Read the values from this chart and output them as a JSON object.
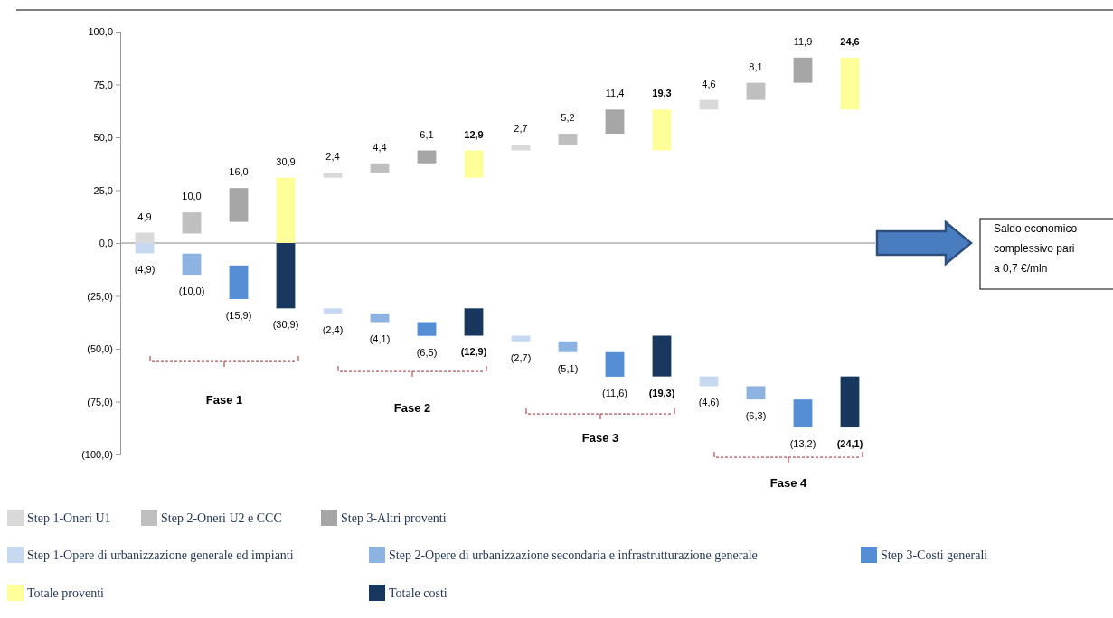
{
  "chart_data": {
    "type": "bar",
    "categories": [
      null,
      null,
      null,
      null,
      null,
      null,
      null,
      null,
      null,
      null,
      null,
      null,
      null,
      null,
      null,
      null
    ],
    "ylim": [
      -100,
      100
    ],
    "yticks": [
      {
        "value": 100,
        "label": "100,0"
      },
      {
        "value": 75,
        "label": "75,0"
      },
      {
        "value": 50,
        "label": "50,0"
      },
      {
        "value": 25,
        "label": "25,0"
      },
      {
        "value": 0,
        "label": "0,0"
      },
      {
        "value": -25,
        "label": "(25,0)"
      },
      {
        "value": -50,
        "label": "(50,0)"
      },
      {
        "value": -75,
        "label": "(75,0)"
      },
      {
        "value": -100,
        "label": "(100,0)"
      }
    ],
    "ref_lines": [
      {
        "axis": "y",
        "value": 0,
        "color": "#888888"
      }
    ],
    "legend": "bottom",
    "series": [
      {
        "name": "Step 1-Oneri U1",
        "color": "#d9d9d9",
        "values": [
          4.9,
          null,
          null,
          null,
          2.4,
          null,
          null,
          null,
          2.7,
          null,
          null,
          null,
          4.6,
          null,
          null,
          null
        ],
        "base": [
          0,
          null,
          null,
          null,
          30.9,
          null,
          null,
          null,
          43.8,
          null,
          null,
          null,
          63.1,
          null,
          null,
          null
        ],
        "value_labels": [
          "4,9",
          null,
          null,
          null,
          "2,4",
          null,
          null,
          null,
          "2,7",
          null,
          null,
          null,
          "4,6",
          null,
          null,
          null
        ]
      },
      {
        "name": "Step 2-Oneri U2 e CCC",
        "color": "#bfbfbf",
        "values": [
          null,
          10.0,
          null,
          null,
          null,
          4.4,
          null,
          null,
          null,
          5.2,
          null,
          null,
          null,
          8.1,
          null,
          null
        ],
        "base": [
          null,
          4.5,
          null,
          null,
          null,
          33.3,
          null,
          null,
          null,
          46.5,
          null,
          null,
          null,
          67.7,
          null,
          null
        ],
        "value_labels": [
          null,
          "10,0",
          null,
          null,
          null,
          "4,4",
          null,
          null,
          null,
          "5,2",
          null,
          null,
          null,
          "8,1",
          null,
          null
        ]
      },
      {
        "name": "Step 3-Altri proventi",
        "color": "#a6a6a6",
        "values": [
          null,
          null,
          16.0,
          null,
          null,
          null,
          6.1,
          null,
          null,
          null,
          11.4,
          null,
          null,
          null,
          11.9,
          null
        ],
        "base": [
          null,
          null,
          10.0,
          null,
          null,
          null,
          37.7,
          null,
          null,
          null,
          51.7,
          null,
          null,
          null,
          75.8,
          null
        ],
        "value_labels": [
          null,
          null,
          "16,0",
          null,
          null,
          null,
          "6,1",
          null,
          null,
          null,
          "11,4",
          null,
          null,
          null,
          "11,9",
          null
        ]
      },
      {
        "name": "Step 1-Opere di urbanizzazione generale ed impianti",
        "color": "#c6d9f1",
        "values": [
          -4.9,
          null,
          null,
          null,
          -2.4,
          null,
          null,
          null,
          -2.7,
          null,
          null,
          null,
          -4.6,
          null,
          null,
          null
        ],
        "base": [
          0,
          null,
          null,
          null,
          -30.9,
          null,
          null,
          null,
          -43.8,
          null,
          null,
          null,
          -63.1,
          null,
          null,
          null
        ],
        "value_labels": [
          "(4,9)",
          null,
          null,
          null,
          "(2,4)",
          null,
          null,
          null,
          "(2,7)",
          null,
          null,
          null,
          "(4,6)",
          null,
          null,
          null
        ]
      },
      {
        "name": "Step 2-Opere di urbanizzazione secondaria e infrastrutturazione generale",
        "color": "#8db3e2",
        "values": [
          null,
          -10.0,
          null,
          null,
          null,
          -4.1,
          null,
          null,
          null,
          -5.1,
          null,
          null,
          null,
          -6.3,
          null,
          null
        ],
        "base": [
          null,
          -5.0,
          null,
          null,
          null,
          -33.3,
          null,
          null,
          null,
          -46.5,
          null,
          null,
          null,
          -67.7,
          null,
          null
        ],
        "value_labels": [
          null,
          "(10,0)",
          null,
          null,
          null,
          "(4,1)",
          null,
          null,
          null,
          "(5,1)",
          null,
          null,
          null,
          "(6,3)",
          null,
          null
        ]
      },
      {
        "name": "Step 3-Costi generali",
        "color": "#558ed5",
        "values": [
          null,
          null,
          -15.9,
          null,
          null,
          null,
          -6.5,
          null,
          null,
          null,
          -11.6,
          null,
          null,
          null,
          -13.2,
          null
        ],
        "base": [
          null,
          null,
          -10.6,
          null,
          null,
          null,
          -37.4,
          null,
          null,
          null,
          -51.6,
          null,
          null,
          null,
          -74.0,
          null
        ],
        "value_labels": [
          null,
          null,
          "(15,9)",
          null,
          null,
          null,
          "(6,5)",
          null,
          null,
          null,
          "(11,6)",
          null,
          null,
          null,
          "(13,2)",
          null
        ]
      },
      {
        "name": "Totale proventi",
        "color": "#ffff99",
        "values": [
          null,
          null,
          null,
          30.9,
          null,
          null,
          null,
          12.9,
          null,
          null,
          null,
          19.3,
          null,
          null,
          null,
          24.6
        ],
        "base": [
          null,
          null,
          null,
          0,
          null,
          null,
          null,
          30.9,
          null,
          null,
          null,
          43.8,
          null,
          null,
          null,
          63.1
        ],
        "value_labels": [
          null,
          null,
          null,
          "30,9",
          null,
          null,
          null,
          "12,9",
          null,
          null,
          null,
          "19,3",
          null,
          null,
          null,
          "24,6"
        ]
      },
      {
        "name": "Totale costi",
        "color": "#17375e",
        "values": [
          null,
          null,
          null,
          -30.9,
          null,
          null,
          null,
          -12.9,
          null,
          null,
          null,
          -19.3,
          null,
          null,
          null,
          -24.1
        ],
        "base": [
          null,
          null,
          null,
          0,
          null,
          null,
          null,
          -30.9,
          null,
          null,
          null,
          -43.8,
          null,
          null,
          null,
          -63.1
        ],
        "value_labels": [
          null,
          null,
          null,
          "(30,9)",
          null,
          null,
          null,
          "(12,9)",
          null,
          null,
          null,
          "(19,3)",
          null,
          null,
          null,
          "(24,1)"
        ]
      }
    ],
    "annotations": [
      "Fase 1",
      "Fase 2",
      "Fase 3",
      "Fase 4",
      "Saldo economico complessivo pari a 0,7 €/mln"
    ]
  }
}
